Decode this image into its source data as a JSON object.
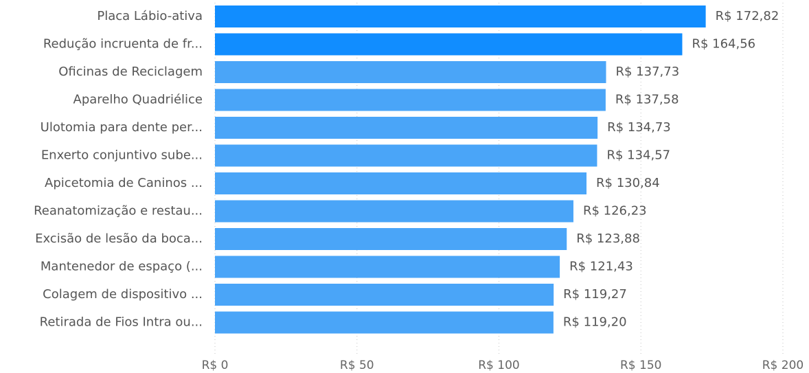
{
  "chart_data": {
    "type": "barh",
    "categories": [
      "Placa Lábio-ativa",
      "Redução incruenta de fr...",
      "Oficinas de Reciclagem",
      "Aparelho Quadriélice",
      "Ulotomia para dente per...",
      "Enxerto conjuntivo sube...",
      "Apicetomia de Caninos ...",
      "Reanatomização e restau...",
      "Excisão de lesão da boca...",
      "Mantenedor de espaço (...",
      "Colagem de dispositivo ...",
      "Retirada de Fios Intra ou..."
    ],
    "values": [
      172.82,
      164.56,
      137.73,
      137.58,
      134.73,
      134.57,
      130.84,
      126.23,
      123.88,
      121.43,
      119.27,
      119.2
    ],
    "value_labels": [
      "R$ 172,82",
      "R$ 164,56",
      "R$ 137,73",
      "R$ 137,58",
      "R$ 134,73",
      "R$ 134,57",
      "R$ 130,84",
      "R$ 126,23",
      "R$ 123,88",
      "R$ 121,43",
      "R$ 119,27",
      "R$ 119,20"
    ],
    "colors": [
      "#118dff",
      "#118dff",
      "#4aa5f8",
      "#4aa5f8",
      "#4aa5f8",
      "#4aa5f8",
      "#4aa5f8",
      "#4aa5f8",
      "#4aa5f8",
      "#4aa5f8",
      "#4aa5f8",
      "#4aa5f8"
    ],
    "xlim": [
      0,
      200
    ],
    "xticks": [
      {
        "value": 0,
        "label": "R$ 0"
      },
      {
        "value": 50,
        "label": "R$ 50"
      },
      {
        "value": 100,
        "label": "R$ 100"
      },
      {
        "value": 150,
        "label": "R$ 150"
      },
      {
        "value": 200,
        "label": "R$ 200"
      }
    ],
    "grid": true
  }
}
